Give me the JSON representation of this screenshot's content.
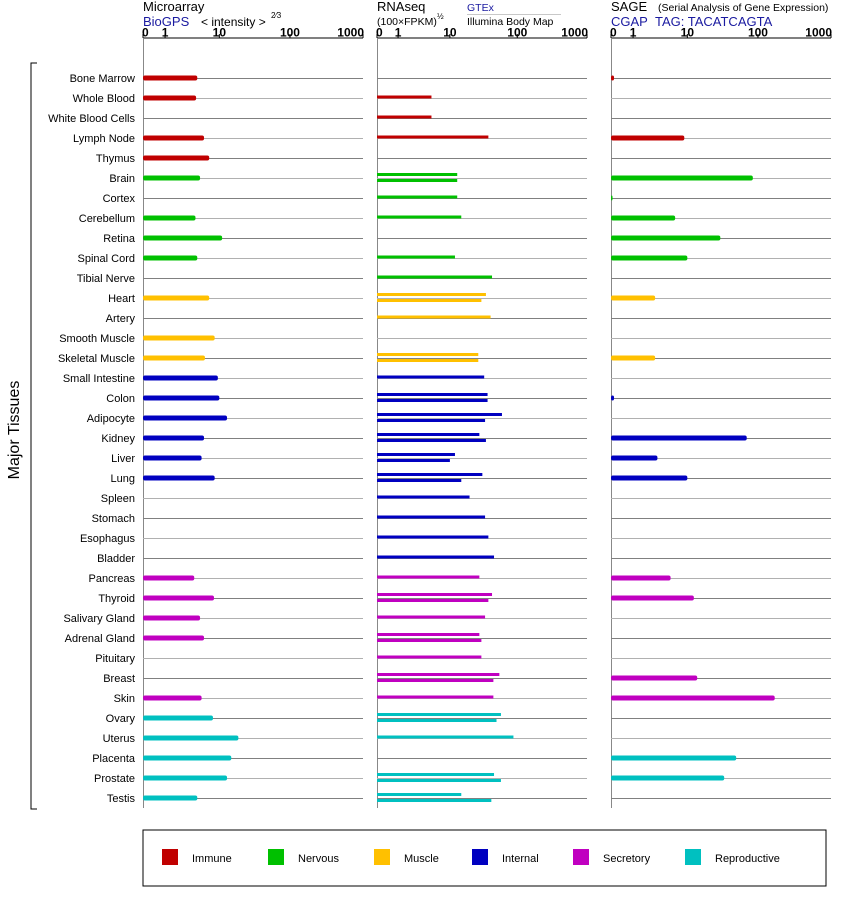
{
  "headers": {
    "microarray": {
      "title": "Microarray",
      "source": "BioGPS",
      "unit": "< intensity >",
      "unit_exponent": "2⁄3"
    },
    "rnaseq": {
      "title": "RNAseq",
      "source": "GTEx",
      "source2": "Illumina Body Map",
      "unit": "(100×FPKM)",
      "unit_exponent": "½"
    },
    "sage": {
      "title": "SAGE",
      "subtitle": "(Serial Analysis of Gene Expression)",
      "source": "CGAP",
      "tag": "TAG: TACATCAGTA"
    }
  },
  "y_axis_title": "Major Tissues",
  "chart_data": {
    "type": "bar",
    "orientation": "horizontal",
    "x_scale": "log-like (value+1)",
    "x_ticks": [
      "0",
      "1",
      "10",
      "100",
      "1000"
    ],
    "xlim": [
      0,
      1000
    ],
    "legend_position": "bottom",
    "groups": [
      {
        "name": "Immune",
        "color": "#c00000"
      },
      {
        "name": "Nervous",
        "color": "#00c000"
      },
      {
        "name": "Muscle",
        "color": "#ffc000"
      },
      {
        "name": "Internal",
        "color": "#0000c0"
      },
      {
        "name": "Secretory",
        "color": "#c000c0"
      },
      {
        "name": "Reproductive",
        "color": "#00c0c0"
      }
    ],
    "tissues": [
      {
        "name": "Bone Marrow",
        "group": 0,
        "microarray": 4.5,
        "rnaseq": [],
        "sage": 0.1
      },
      {
        "name": "Whole Blood",
        "group": 0,
        "microarray": 4.3,
        "rnaseq": [
          5
        ],
        "sage": null
      },
      {
        "name": "White Blood Cells",
        "group": 0,
        "microarray": null,
        "rnaseq": [
          5
        ],
        "sage": null
      },
      {
        "name": "Lymph Node",
        "group": 0,
        "microarray": 5.8,
        "rnaseq": [
          38
        ],
        "sage": 9
      },
      {
        "name": "Thymus",
        "group": 0,
        "microarray": 7,
        "rnaseq": [],
        "sage": null
      },
      {
        "name": "Brain",
        "group": 1,
        "microarray": 5,
        "rnaseq": [
          13,
          13
        ],
        "sage": 85
      },
      {
        "name": "Cortex",
        "group": 1,
        "microarray": null,
        "rnaseq": [
          13
        ],
        "sage": 0.05
      },
      {
        "name": "Cerebellum",
        "group": 1,
        "microarray": 4.2,
        "rnaseq": [
          15
        ],
        "sage": 6.5
      },
      {
        "name": "Retina",
        "group": 1,
        "microarray": 11,
        "rnaseq": [],
        "sage": 30
      },
      {
        "name": "Spinal Cord",
        "group": 1,
        "microarray": 4.5,
        "rnaseq": [
          12
        ],
        "sage": 10
      },
      {
        "name": "Tibial Nerve",
        "group": 1,
        "microarray": null,
        "rnaseq": [
          43
        ],
        "sage": null
      },
      {
        "name": "Heart",
        "group": 2,
        "microarray": 7,
        "rnaseq": [
          35,
          30
        ],
        "sage": 3
      },
      {
        "name": "Artery",
        "group": 2,
        "microarray": null,
        "rnaseq": [
          41
        ],
        "sage": null
      },
      {
        "name": "Smooth Muscle",
        "group": 2,
        "microarray": 8.5,
        "rnaseq": [],
        "sage": null
      },
      {
        "name": "Skeletal Muscle",
        "group": 2,
        "microarray": 6,
        "rnaseq": [
          27,
          27
        ],
        "sage": 3
      },
      {
        "name": "Small Intestine",
        "group": 3,
        "microarray": 9.5,
        "rnaseq": [
          33
        ],
        "sage": null
      },
      {
        "name": "Colon",
        "group": 3,
        "microarray": 10,
        "rnaseq": [
          37,
          37
        ],
        "sage": 0.1
      },
      {
        "name": "Adipocyte",
        "group": 3,
        "microarray": 13,
        "rnaseq": [
          60,
          34
        ],
        "sage": null
      },
      {
        "name": "Kidney",
        "group": 3,
        "microarray": 5.8,
        "rnaseq": [
          28,
          35
        ],
        "sage": 70
      },
      {
        "name": "Liver",
        "group": 3,
        "microarray": 5.3,
        "rnaseq": [
          12,
          10
        ],
        "sage": 3.3
      },
      {
        "name": "Lung",
        "group": 3,
        "microarray": 8.5,
        "rnaseq": [
          31,
          15
        ],
        "sage": 10
      },
      {
        "name": "Spleen",
        "group": 3,
        "microarray": null,
        "rnaseq": [
          20
        ],
        "sage": null
      },
      {
        "name": "Stomach",
        "group": 3,
        "microarray": null,
        "rnaseq": [
          34
        ],
        "sage": null
      },
      {
        "name": "Esophagus",
        "group": 3,
        "microarray": null,
        "rnaseq": [
          38
        ],
        "sage": null
      },
      {
        "name": "Bladder",
        "group": 3,
        "microarray": null,
        "rnaseq": [
          46
        ],
        "sage": null
      },
      {
        "name": "Pancreas",
        "group": 4,
        "microarray": 4,
        "rnaseq": [
          28
        ],
        "sage": 5.5
      },
      {
        "name": "Thyroid",
        "group": 4,
        "microarray": 8.3,
        "rnaseq": [
          43,
          38
        ],
        "sage": 12.5
      },
      {
        "name": "Salivary Gland",
        "group": 4,
        "microarray": 5,
        "rnaseq": [
          34
        ],
        "sage": null
      },
      {
        "name": "Adrenal Gland",
        "group": 4,
        "microarray": 5.8,
        "rnaseq": [
          28,
          30
        ],
        "sage": null
      },
      {
        "name": "Pituitary",
        "group": 4,
        "microarray": null,
        "rnaseq": [
          30
        ],
        "sage": null
      },
      {
        "name": "Breast",
        "group": 4,
        "microarray": null,
        "rnaseq": [
          55,
          45
        ],
        "sage": 14
      },
      {
        "name": "Skin",
        "group": 4,
        "microarray": 5.3,
        "rnaseq": [
          45
        ],
        "sage": 170
      },
      {
        "name": "Ovary",
        "group": 5,
        "microarray": 8,
        "rnaseq": [
          58,
          50
        ],
        "sage": null
      },
      {
        "name": "Uterus",
        "group": 5,
        "microarray": 19,
        "rnaseq": [
          88
        ],
        "sage": null
      },
      {
        "name": "Placenta",
        "group": 5,
        "microarray": 15,
        "rnaseq": [],
        "sage": 50
      },
      {
        "name": "Prostate",
        "group": 5,
        "microarray": 13,
        "rnaseq": [
          46,
          58
        ],
        "sage": 34
      },
      {
        "name": "Testis",
        "group": 5,
        "microarray": 4.5,
        "rnaseq": [
          15,
          42
        ],
        "sage": null
      }
    ]
  }
}
